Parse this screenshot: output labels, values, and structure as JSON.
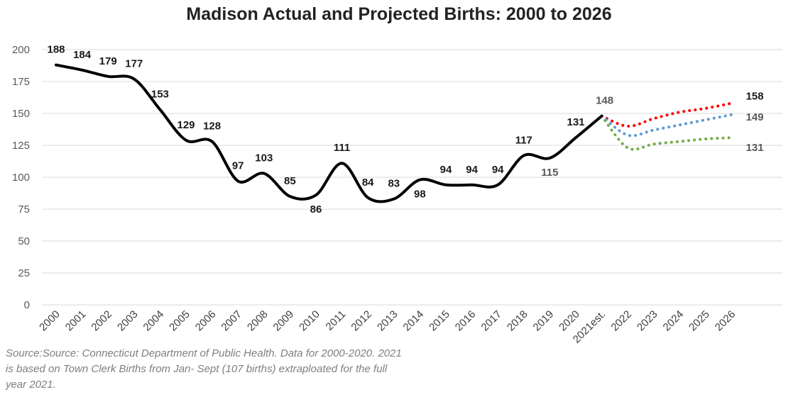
{
  "chart_data": {
    "type": "line",
    "title": "Madison Actual and Projected Births: 2000 to 2026",
    "source_note": "Source:Source: Connecticut Department of Public Health. Data for 2000-2020.  2021 is based on Town Clerk Births from Jan- Sept (107 births) extraploated for the full year 2021.",
    "categories": [
      "2000",
      "2001",
      "2002",
      "2003",
      "2004",
      "2005",
      "2006",
      "2007",
      "2008",
      "2009",
      "2010",
      "2011",
      "2012",
      "2013",
      "2014",
      "2015",
      "2016",
      "2017",
      "2018",
      "2019",
      "2020",
      "2021est.",
      "2022",
      "2023",
      "2024",
      "2025",
      "2026"
    ],
    "ylim": [
      0,
      200
    ],
    "yticks": [
      0,
      25,
      50,
      75,
      100,
      125,
      150,
      175,
      200
    ],
    "grid": true,
    "legend": "none",
    "series": [
      {
        "style": "solid",
        "color": "#000000",
        "values": [
          188,
          184,
          179,
          177,
          153,
          129,
          128,
          97,
          103,
          85,
          86,
          111,
          84,
          83,
          98,
          94,
          94,
          94,
          117,
          115,
          131,
          148,
          null,
          null,
          null,
          null,
          null
        ]
      },
      {
        "style": "dotted",
        "color": "#ff0000",
        "values": [
          null,
          null,
          null,
          null,
          null,
          null,
          null,
          null,
          null,
          null,
          null,
          null,
          null,
          null,
          null,
          null,
          null,
          null,
          null,
          null,
          null,
          148,
          140,
          146,
          151,
          154,
          158
        ]
      },
      {
        "style": "dotted",
        "color": "#5b9bd5",
        "values": [
          null,
          null,
          null,
          null,
          null,
          null,
          null,
          null,
          null,
          null,
          null,
          null,
          null,
          null,
          null,
          null,
          null,
          null,
          null,
          null,
          null,
          148,
          133,
          137,
          141,
          145,
          149
        ]
      },
      {
        "style": "dotted",
        "color": "#70ad47",
        "values": [
          null,
          null,
          null,
          null,
          null,
          null,
          null,
          null,
          null,
          null,
          null,
          null,
          null,
          null,
          null,
          null,
          null,
          null,
          null,
          null,
          null,
          148,
          123,
          126,
          128,
          130,
          131
        ]
      }
    ],
    "data_labels": [
      {
        "text": "188",
        "index": 0,
        "value": 188
      },
      {
        "text": "184",
        "index": 1,
        "value": 184
      },
      {
        "text": "179",
        "index": 2,
        "value": 179
      },
      {
        "text": "177",
        "index": 3,
        "value": 177
      },
      {
        "text": "153",
        "index": 4,
        "value": 153
      },
      {
        "text": "129",
        "index": 5,
        "value": 129
      },
      {
        "text": "128",
        "index": 6,
        "value": 128
      },
      {
        "text": "97",
        "index": 7,
        "value": 97
      },
      {
        "text": "103",
        "index": 8,
        "value": 103
      },
      {
        "text": "85",
        "index": 9,
        "value": 85
      },
      {
        "text": "86",
        "index": 10,
        "value": 86
      },
      {
        "text": "111",
        "index": 11,
        "value": 111
      },
      {
        "text": "84",
        "index": 12,
        "value": 84
      },
      {
        "text": "83",
        "index": 13,
        "value": 83
      },
      {
        "text": "98",
        "index": 14,
        "value": 98
      },
      {
        "text": "94",
        "index": 15,
        "value": 94
      },
      {
        "text": "94",
        "index": 16,
        "value": 94
      },
      {
        "text": "94",
        "index": 17,
        "value": 94
      },
      {
        "text": "117",
        "index": 18,
        "value": 117
      },
      {
        "text": "115",
        "index": 19,
        "value": 115
      },
      {
        "text": "131",
        "index": 20,
        "value": 131
      },
      {
        "text": "148",
        "index": 21,
        "value": 148
      },
      {
        "text": "158",
        "index": 26,
        "value": 158
      },
      {
        "text": "149",
        "index": 26,
        "value": 149
      },
      {
        "text": "131",
        "index": 26,
        "value": 131
      }
    ]
  }
}
